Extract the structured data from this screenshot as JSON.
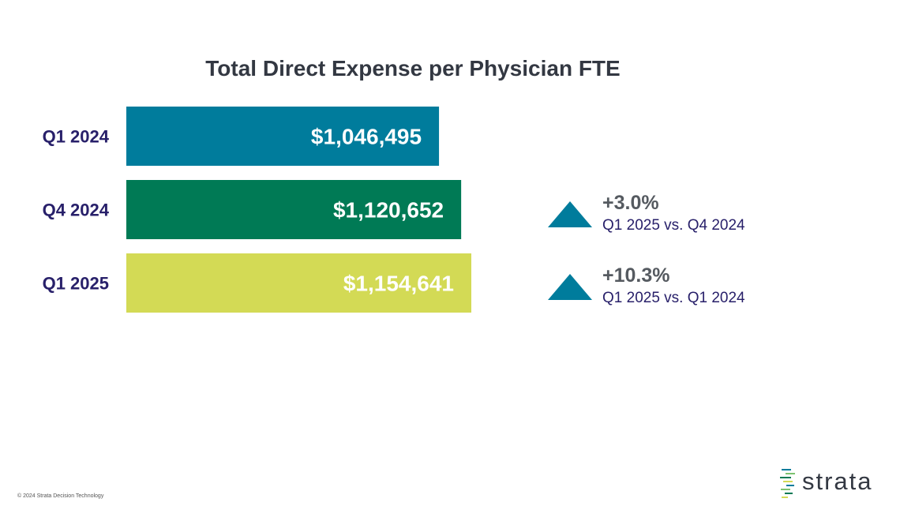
{
  "chart_data": {
    "type": "bar",
    "orientation": "horizontal",
    "title": "Total Direct Expense per Physician FTE",
    "categories": [
      "Q1 2024",
      "Q4 2024",
      "Q1 2025"
    ],
    "values": [
      1046495,
      1120652,
      1154641
    ],
    "value_labels": [
      "$1,046,495",
      "$1,120,652",
      "$1,154,641"
    ],
    "colors": [
      "#007c9c",
      "#007a55",
      "#d3da55"
    ],
    "xlim": [
      0,
      1154641
    ]
  },
  "comparisons": [
    {
      "direction": "up",
      "change": "+3.0%",
      "label": "Q1 2025 vs. Q4 2024"
    },
    {
      "direction": "up",
      "change": "+10.3%",
      "label": "Q1 2025 vs. Q1 2024"
    }
  ],
  "footer": {
    "copyright": "© 2024 Strata Decision Technology"
  },
  "logo": {
    "name": "strata",
    "icon": "strata-logo-icon"
  },
  "colors": {
    "title": "#333842",
    "category_label": "#28206a",
    "arrow": "#007c9c"
  }
}
